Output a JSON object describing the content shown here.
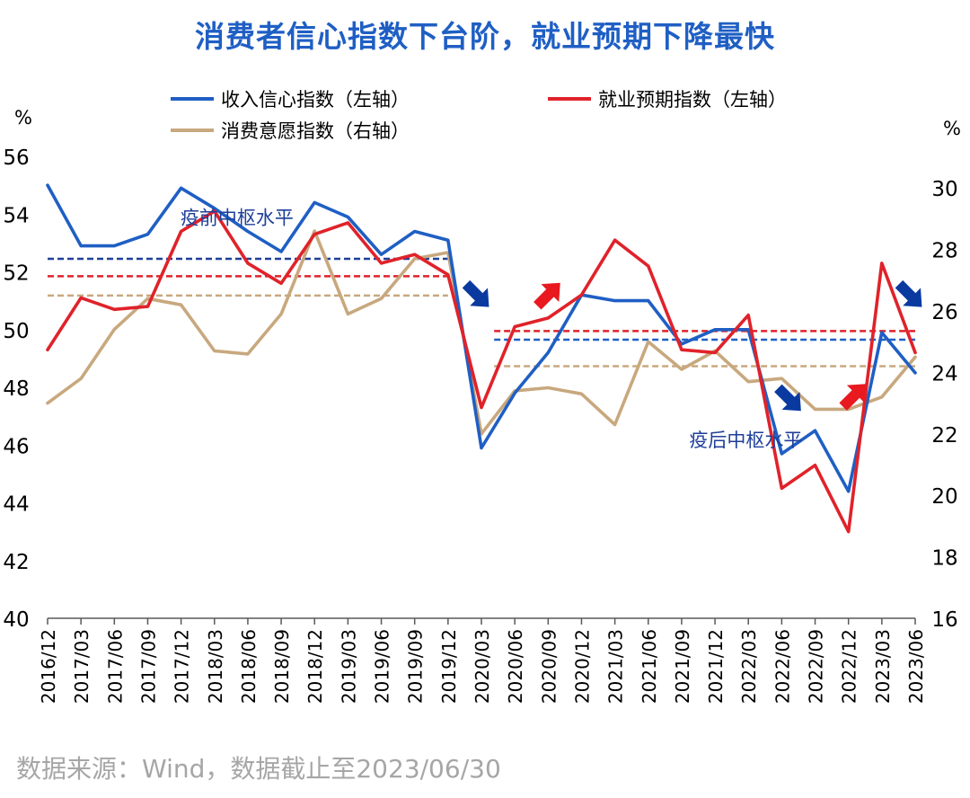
{
  "title": "消费者信心指数下台阶，就业预期下降最快",
  "source": "数据来源：Wind，数据截止至2023/06/30",
  "colors": {
    "title": "#1f5fc4",
    "income": "#1f5fc4",
    "employment": "#e0222a",
    "consumption": "#c8a87e",
    "pre_pandemic_income_ref": "#1f3f99",
    "annotation_blue": "#1f3f99",
    "arrow_blue": "#0a3aa0",
    "arrow_red": "#e8191f",
    "source": "#a6a6a6"
  },
  "chart_data": {
    "type": "line",
    "x": [
      "2016/12",
      "2017/03",
      "2017/06",
      "2017/09",
      "2017/12",
      "2018/03",
      "2018/06",
      "2018/09",
      "2018/12",
      "2019/03",
      "2019/06",
      "2019/09",
      "2019/12",
      "2020/03",
      "2020/06",
      "2020/09",
      "2020/12",
      "2021/03",
      "2021/06",
      "2021/09",
      "2021/12",
      "2022/03",
      "2022/06",
      "2022/09",
      "2022/12",
      "2023/03",
      "2023/06"
    ],
    "y_left": {
      "unit": "%",
      "ticks": [
        40,
        42,
        44,
        46,
        48,
        50,
        52,
        54,
        56
      ],
      "range": [
        40,
        56
      ]
    },
    "y_right": {
      "unit": "%",
      "ticks": [
        16,
        18,
        20,
        22,
        24,
        26,
        28,
        30
      ],
      "range": [
        16,
        31
      ]
    },
    "series": [
      {
        "name": "收入信心指数（左轴）",
        "axis": "left",
        "color": "#1f5fc4",
        "values": [
          55.0,
          52.9,
          52.9,
          53.3,
          54.9,
          54.2,
          53.4,
          52.7,
          54.4,
          53.9,
          52.6,
          53.4,
          53.1,
          45.9,
          47.8,
          49.2,
          51.2,
          51.0,
          51.0,
          49.5,
          50.0,
          50.0,
          45.7,
          46.5,
          44.4,
          49.9,
          48.5
        ]
      },
      {
        "name": "就业预期指数（左轴）",
        "axis": "left",
        "color": "#e0222a",
        "values": [
          49.3,
          51.1,
          50.7,
          50.8,
          53.4,
          54.1,
          52.3,
          51.6,
          53.3,
          53.7,
          52.3,
          52.6,
          51.9,
          47.3,
          50.1,
          50.4,
          51.2,
          53.1,
          52.2,
          49.3,
          49.2,
          50.5,
          44.5,
          45.3,
          43.0,
          52.3,
          49.2
        ]
      },
      {
        "name": "消费意愿指数（右轴）",
        "axis": "right",
        "color": "#c8a87e",
        "values": [
          23.0,
          23.8,
          25.4,
          26.4,
          26.2,
          24.7,
          24.6,
          25.9,
          28.6,
          25.9,
          26.4,
          27.7,
          27.9,
          22.0,
          23.4,
          23.5,
          23.3,
          22.3,
          25.0,
          24.1,
          24.7,
          23.7,
          23.8,
          22.8,
          22.8,
          23.2,
          24.5
        ]
      }
    ],
    "reference_lines": [
      {
        "series": "收入信心指数（左轴）",
        "period": "疫前",
        "axis": "left",
        "value": 52.45,
        "from": "2016/12",
        "to": "2019/12"
      },
      {
        "series": "就业预期指数（左轴）",
        "period": "疫前",
        "axis": "left",
        "value": 51.85,
        "from": "2016/12",
        "to": "2019/12"
      },
      {
        "series": "消费意愿指数（右轴）",
        "period": "疫前",
        "axis": "right",
        "value": 26.5,
        "from": "2016/12",
        "to": "2019/12"
      },
      {
        "series": "收入信心指数（左轴）",
        "period": "疫后",
        "axis": "left",
        "value": 49.65,
        "from": "2020/06",
        "to": "2023/06"
      },
      {
        "series": "就业预期指数（左轴）",
        "period": "疫后",
        "axis": "left",
        "value": 49.95,
        "from": "2020/06",
        "to": "2023/06"
      },
      {
        "series": "消费意愿指数（右轴）",
        "period": "疫后",
        "axis": "right",
        "value": 24.2,
        "from": "2020/06",
        "to": "2023/06"
      }
    ],
    "annotations": [
      {
        "text": "疫前中枢水平",
        "near": "2018/06",
        "axis": "left",
        "value": 53.9
      },
      {
        "text": "疫后中枢水平",
        "near": "2022/06",
        "axis": "left",
        "value": 46.2
      }
    ],
    "arrows": [
      {
        "color": "blue",
        "direction": "down",
        "near": "2020/03",
        "axis": "left",
        "value": 51.2
      },
      {
        "color": "red",
        "direction": "up",
        "near": "2020/09",
        "axis": "left",
        "value": 51.2
      },
      {
        "color": "blue",
        "direction": "down",
        "near": "2022/06",
        "axis": "left",
        "value": 47.6
      },
      {
        "color": "red",
        "direction": "up",
        "near": "2022/12",
        "axis": "left",
        "value": 47.7
      },
      {
        "color": "blue",
        "direction": "down",
        "near": "2023/06",
        "axis": "left",
        "value": 51.2
      }
    ],
    "legend": {
      "placement": "top",
      "columns": 2
    },
    "grid": false
  }
}
